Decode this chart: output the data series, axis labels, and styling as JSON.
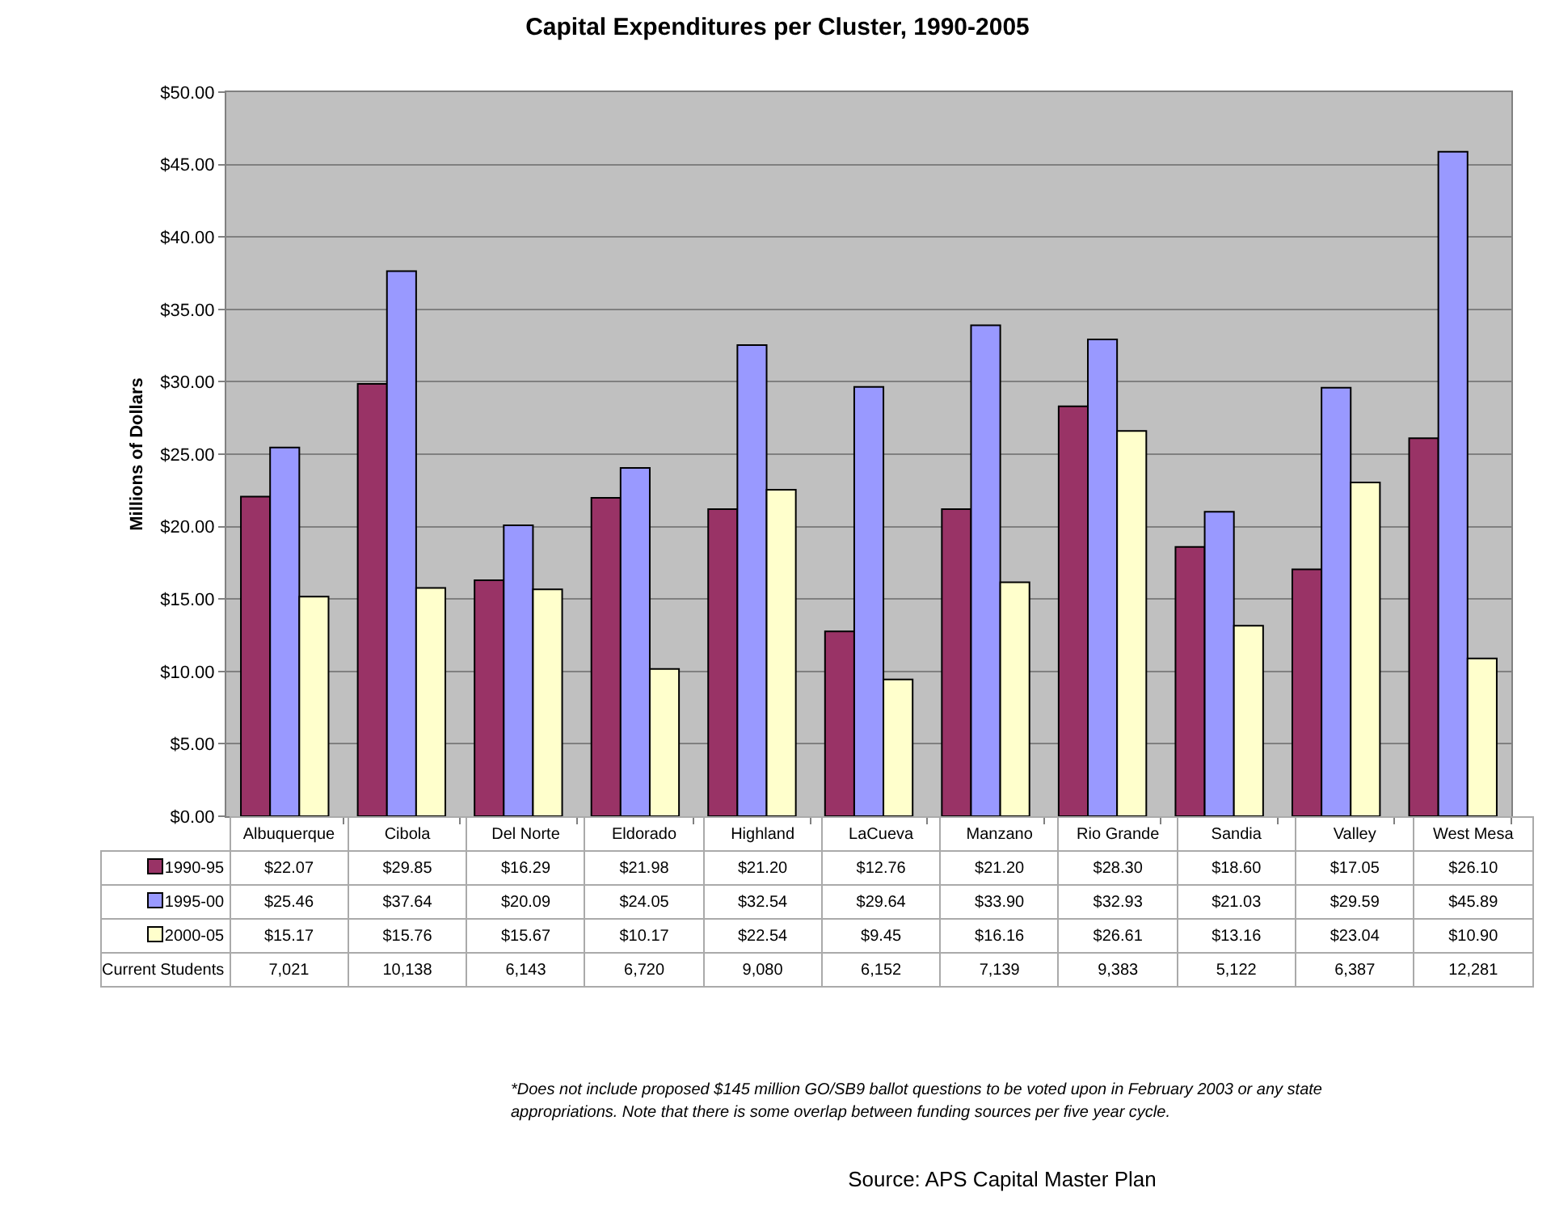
{
  "chart_data": {
    "type": "bar",
    "title": "Capital Expenditures per Cluster, 1990-2005",
    "ylabel": "Millions of Dollars",
    "categories": [
      "Albuquerque",
      "Cibola",
      "Del Norte",
      "Eldorado",
      "Highland",
      "LaCueva",
      "Manzano",
      "Rio Grande",
      "Sandia",
      "Valley",
      "West Mesa"
    ],
    "series": [
      {
        "name": "1990-95",
        "color": "#993366",
        "values": [
          22.07,
          29.85,
          16.29,
          21.98,
          21.2,
          12.76,
          21.2,
          28.3,
          18.6,
          17.05,
          26.1
        ],
        "value_labels": [
          "$22.07",
          "$29.85",
          "$16.29",
          "$21.98",
          "$21.20",
          "$12.76",
          "$21.20",
          "$28.30",
          "$18.60",
          "$17.05",
          "$26.10"
        ]
      },
      {
        "name": "1995-00",
        "color": "#9999ff",
        "values": [
          25.46,
          37.64,
          20.09,
          24.05,
          32.54,
          29.64,
          33.9,
          32.93,
          21.03,
          29.59,
          45.89
        ],
        "value_labels": [
          "$25.46",
          "$37.64",
          "$20.09",
          "$24.05",
          "$32.54",
          "$29.64",
          "$33.90",
          "$32.93",
          "$21.03",
          "$29.59",
          "$45.89"
        ]
      },
      {
        "name": "2000-05",
        "color": "#ffffcc",
        "values": [
          15.17,
          15.76,
          15.67,
          10.17,
          22.54,
          9.45,
          16.16,
          26.61,
          13.16,
          23.04,
          10.9
        ],
        "value_labels": [
          "$15.17",
          "$15.76",
          "$15.67",
          "$10.17",
          "$22.54",
          "$9.45",
          "$16.16",
          "$26.61",
          "$13.16",
          "$23.04",
          "$10.90"
        ]
      }
    ],
    "legend": "bottom",
    "ylim": [
      0,
      50
    ],
    "yticks": [
      {
        "value": 0,
        "label": "$0.00"
      },
      {
        "value": 5,
        "label": "$5.00"
      },
      {
        "value": 10,
        "label": "$10.00"
      },
      {
        "value": 15,
        "label": "$15.00"
      },
      {
        "value": 20,
        "label": "$20.00"
      },
      {
        "value": 25,
        "label": "$25.00"
      },
      {
        "value": 30,
        "label": "$30.00"
      },
      {
        "value": 35,
        "label": "$35.00"
      },
      {
        "value": 40,
        "label": "$40.00"
      },
      {
        "value": 45,
        "label": "$45.00"
      },
      {
        "value": 50,
        "label": "$50.00"
      }
    ],
    "grid": "y",
    "annotations": [
      "*Does not include proposed $145 million GO/SB9 ballot questions  to be  voted upon in February 2003 or any state appropriations.  Note that there is some overlap between funding sources per five year cycle.",
      "Source:  APS Capital Master Plan",
      "Current Students",
      "7,021",
      "10,138",
      "6,143",
      "6,720",
      "9,080",
      "6,152",
      "7,139",
      "9,383",
      "5,122",
      "6,387",
      "12,281"
    ]
  }
}
